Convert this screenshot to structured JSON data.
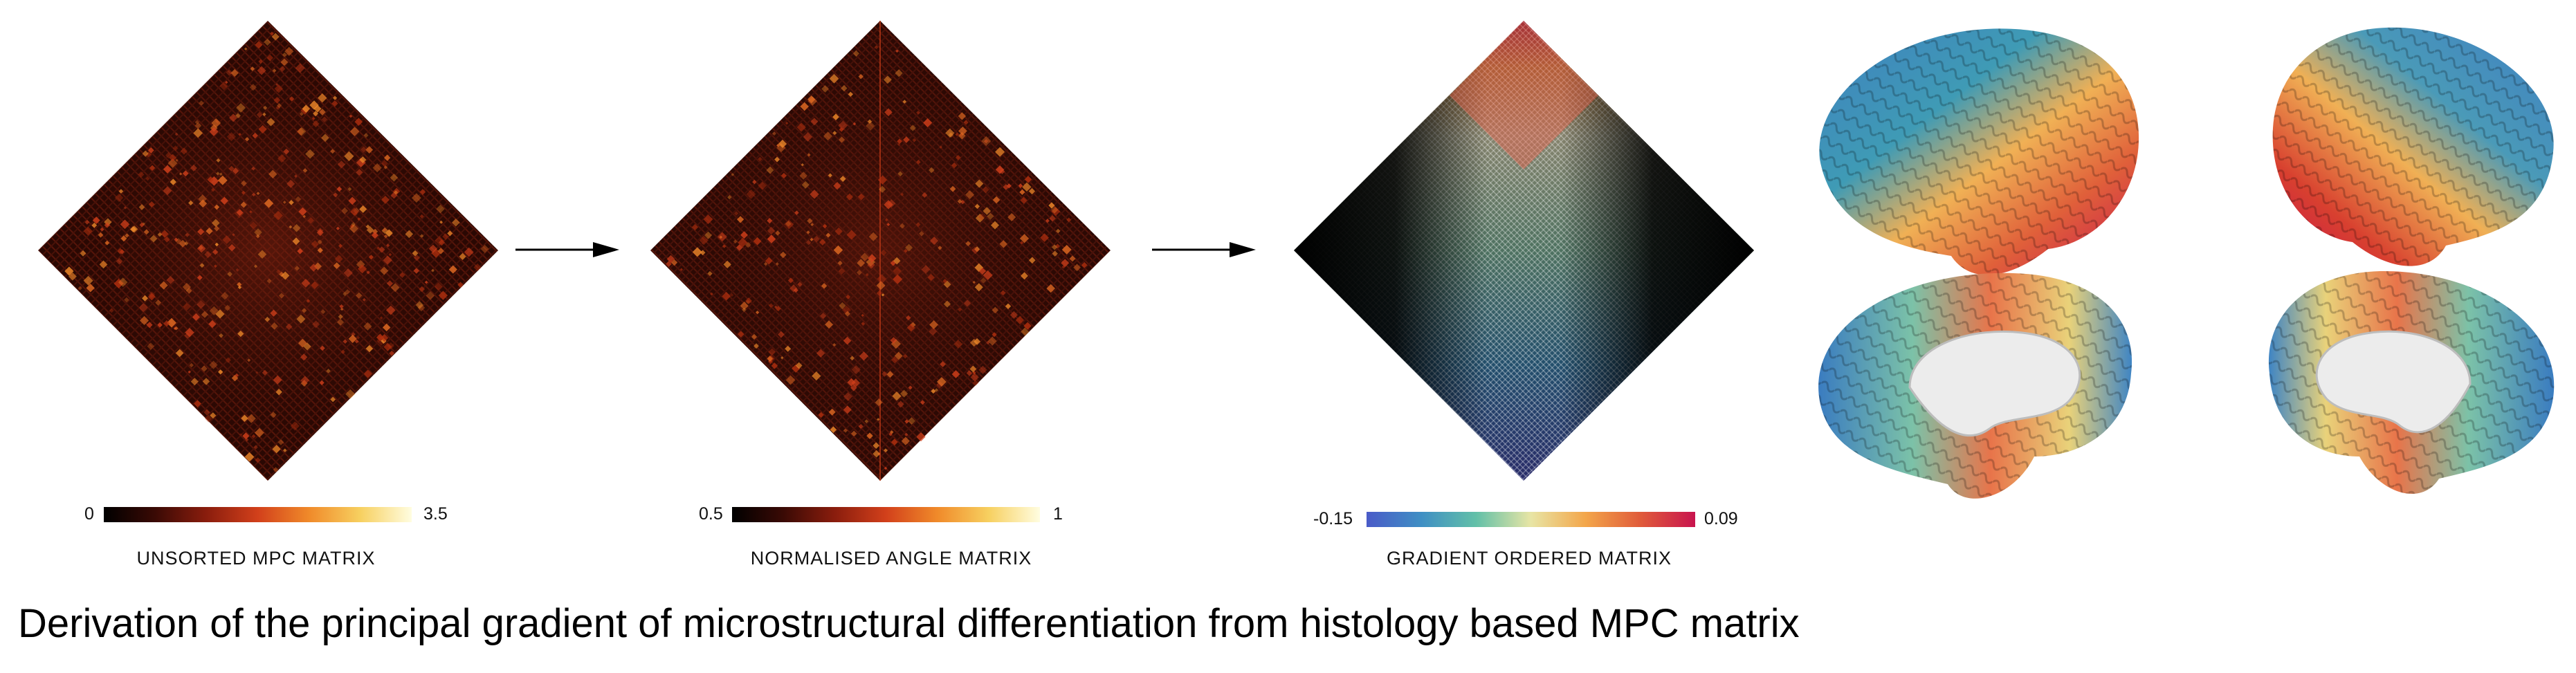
{
  "panels": [
    {
      "title": "UNSORTED MPC MATRIX",
      "colorbar": {
        "min": "0",
        "max": "3.5",
        "colors": [
          "#000000",
          "#3a0a05",
          "#8a1d0d",
          "#d2401b",
          "#f08a2a",
          "#f7d060",
          "#fffde0"
        ]
      }
    },
    {
      "title": "NORMALISED ANGLE MATRIX",
      "colorbar": {
        "min": "0.5",
        "max": "1",
        "colors": [
          "#000000",
          "#3a0a05",
          "#8a1d0d",
          "#d2401b",
          "#f08a2a",
          "#f7d060",
          "#fffde0"
        ]
      }
    },
    {
      "title": "GRADIENT ORDERED MATRIX",
      "colorbar": {
        "min": "-0.15",
        "max": "0.09",
        "colors": [
          "#4a5bc8",
          "#3f8fc4",
          "#62c0a8",
          "#e8e5a5",
          "#f3a64a",
          "#e05b3a",
          "#c8144e"
        ]
      }
    }
  ],
  "caption": "Derivation of the principal gradient of microstructural differentiation from histology based MPC matrix"
}
